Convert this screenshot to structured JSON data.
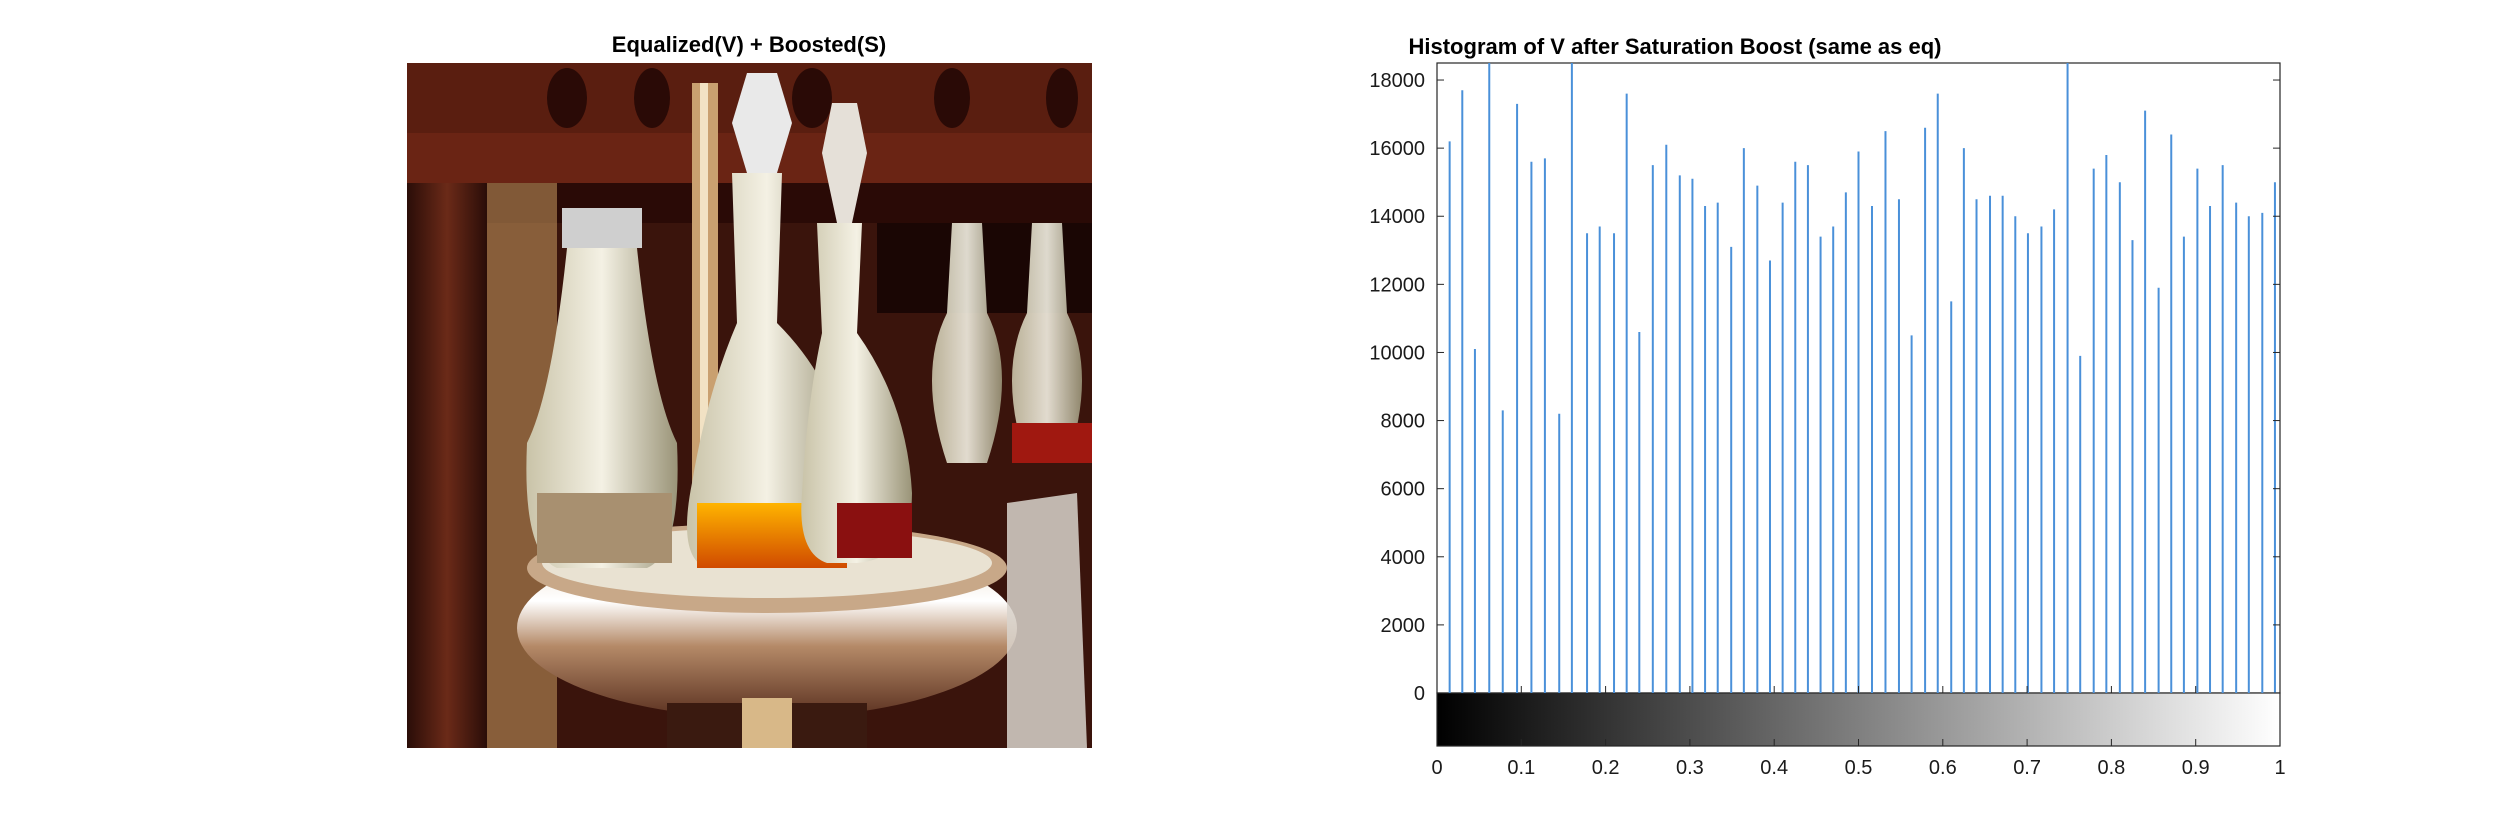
{
  "left_panel": {
    "title": "Equalized(V) + Boosted(S)",
    "image_description_icon": "cruet-set-photo"
  },
  "chart_data": {
    "type": "bar",
    "title": "Histogram of V after Saturation Boost (same as eq)",
    "xlabel": "",
    "ylabel": "",
    "xlim": [
      0,
      1
    ],
    "ylim": [
      0,
      18500
    ],
    "bar_color": "#4a90d9",
    "grid": false,
    "colorbar": "grayscale gradient 0 to 1 below x-axis",
    "x_ticks": [
      "0",
      "0.1",
      "0.2",
      "0.3",
      "0.4",
      "0.5",
      "0.6",
      "0.7",
      "0.8",
      "0.9",
      "1"
    ],
    "y_ticks": [
      "0",
      "2000",
      "4000",
      "6000",
      "8000",
      "10000",
      "12000",
      "14000",
      "16000",
      "18000"
    ],
    "x": [
      0.015,
      0.03,
      0.045,
      0.062,
      0.078,
      0.095,
      0.112,
      0.128,
      0.145,
      0.16,
      0.178,
      0.193,
      0.21,
      0.225,
      0.24,
      0.256,
      0.272,
      0.288,
      0.303,
      0.318,
      0.333,
      0.349,
      0.364,
      0.38,
      0.395,
      0.41,
      0.425,
      0.44,
      0.455,
      0.47,
      0.485,
      0.5,
      0.516,
      0.532,
      0.548,
      0.563,
      0.579,
      0.594,
      0.61,
      0.625,
      0.64,
      0.656,
      0.671,
      0.686,
      0.701,
      0.717,
      0.732,
      0.748,
      0.763,
      0.779,
      0.794,
      0.81,
      0.825,
      0.84,
      0.856,
      0.871,
      0.886,
      0.902,
      0.917,
      0.932,
      0.948,
      0.963,
      0.979,
      0.994
    ],
    "values": [
      16200,
      17700,
      10100,
      18500,
      8300,
      17300,
      15600,
      15700,
      8200,
      18500,
      13500,
      13700,
      13500,
      17600,
      10600,
      15500,
      16100,
      15200,
      15100,
      14300,
      14400,
      13100,
      16000,
      14900,
      12700,
      14400,
      15600,
      15500,
      13400,
      13700,
      14700,
      15900,
      14300,
      16500,
      14500,
      10500,
      16600,
      17600,
      11500,
      16000,
      14500,
      14600,
      14600,
      14000,
      13500,
      13700,
      14200,
      18500,
      9900,
      15400,
      15800,
      15000,
      13300,
      17100,
      11900,
      16400,
      13400,
      15400,
      14300,
      15500,
      14400,
      14000,
      14100,
      15000
    ]
  }
}
